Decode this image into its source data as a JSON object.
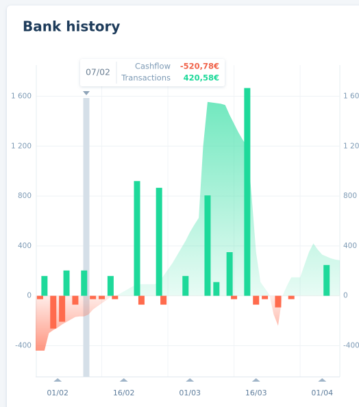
{
  "title": "Bank history",
  "tooltip": {
    "date": "07/02",
    "rows": [
      {
        "label": "Cashflow",
        "value": "-520,78€"
      },
      {
        "label": "Transactions",
        "value": "420,58€"
      }
    ]
  },
  "chart_data": {
    "type": "bar",
    "categories": [
      null,
      null,
      null,
      null,
      null,
      "01/02",
      null,
      null,
      null,
      null,
      null,
      null,
      null,
      null,
      null,
      null,
      null,
      null,
      null,
      null,
      "16/02",
      null,
      null,
      null,
      null,
      null,
      null,
      null,
      null,
      null,
      null,
      null,
      null,
      null,
      null,
      "01/03",
      null,
      null,
      null,
      null,
      null,
      null,
      null,
      null,
      null,
      null,
      null,
      null,
      null,
      null,
      "16/03",
      null,
      null,
      null,
      null,
      null,
      null,
      null,
      null,
      null,
      null,
      null,
      null,
      null,
      null,
      "01/04",
      null,
      null,
      null,
      null
    ],
    "series": [
      {
        "type": "area",
        "color": "#3fe0a8",
        "negative_color": "#ff6b4d",
        "values": [
          -440,
          -440,
          -440,
          -300,
          -275,
          -255,
          -230,
          -210,
          -190,
          -170,
          -165,
          -165,
          -150,
          -110,
          -85,
          -60,
          -35,
          -10,
          0,
          15,
          35,
          55,
          75,
          90,
          93,
          93,
          93,
          93,
          110,
          160,
          210,
          260,
          320,
          380,
          440,
          510,
          570,
          625,
          1200,
          1555,
          1550,
          1545,
          1540,
          1530,
          1450,
          1380,
          1310,
          1250,
          1195,
          800,
          350,
          110,
          60,
          10,
          -150,
          -240,
          0,
          80,
          148,
          148,
          148,
          250,
          350,
          420,
          370,
          330,
          315,
          300,
          290,
          285
        ]
      },
      {
        "type": "bar",
        "color": "#1ed99a",
        "values": [
          null,
          null,
          159,
          null,
          null,
          null,
          null,
          203,
          null,
          null,
          null,
          203,
          null,
          null,
          null,
          null,
          null,
          159,
          null,
          null,
          null,
          null,
          null,
          920,
          null,
          null,
          null,
          null,
          866,
          null,
          null,
          null,
          null,
          null,
          159,
          null,
          null,
          null,
          null,
          805,
          null,
          110,
          null,
          null,
          350,
          null,
          null,
          null,
          1666,
          null,
          null,
          null,
          null,
          null,
          null,
          null,
          null,
          null,
          null,
          null,
          null,
          null,
          null,
          null,
          null,
          null,
          247,
          null,
          null,
          null
        ]
      },
      {
        "type": "bar",
        "color": "#ff6b4d",
        "values": [
          null,
          -27,
          null,
          null,
          -263,
          null,
          -208,
          null,
          null,
          -71,
          null,
          null,
          null,
          -27,
          null,
          -27,
          null,
          null,
          -27,
          null,
          null,
          null,
          null,
          null,
          -71,
          null,
          null,
          null,
          null,
          -71,
          null,
          null,
          null,
          null,
          null,
          null,
          null,
          null,
          null,
          null,
          null,
          null,
          null,
          null,
          null,
          -27,
          null,
          null,
          null,
          null,
          -71,
          null,
          -27,
          null,
          null,
          -93,
          null,
          null,
          -27,
          null,
          null,
          null,
          null,
          null,
          null,
          null,
          null,
          null,
          null,
          null
        ]
      }
    ],
    "ylim": [
      -650,
      1850
    ],
    "yticks": [
      -400,
      0,
      400,
      800,
      {
        "value": 1200,
        "label": "1 200"
      },
      {
        "value": 1600,
        "label": "1 600"
      }
    ],
    "grid": true
  }
}
